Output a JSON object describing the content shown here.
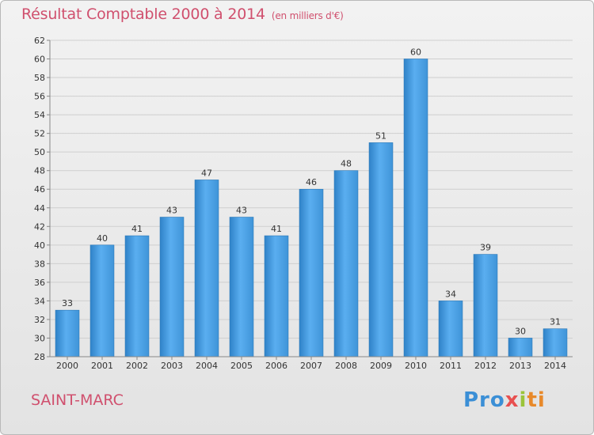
{
  "header": {
    "title": "Résultat Comptable 2000 à 2014",
    "subtitle": "(en milliers d'€)"
  },
  "footer": {
    "town": "SAINT-MARC",
    "brand": {
      "p1": "Pro",
      "p2": "x",
      "p3": "i",
      "p4": "ti"
    }
  },
  "colors": {
    "bar": "#4a9fe0",
    "bar_dark": "#2e7fc4",
    "title": "#d0506e"
  },
  "chart_data": {
    "type": "bar",
    "title": "Résultat Comptable 2000 à 2014",
    "subtitle": "(en milliers d'€)",
    "xlabel": "",
    "ylabel": "",
    "categories": [
      "2000",
      "2001",
      "2002",
      "2003",
      "2004",
      "2005",
      "2006",
      "2007",
      "2008",
      "2009",
      "2010",
      "2011",
      "2012",
      "2013",
      "2014"
    ],
    "values": [
      33,
      40,
      41,
      43,
      47,
      43,
      41,
      46,
      48,
      51,
      60,
      34,
      39,
      30,
      31
    ],
    "ylim": [
      28,
      62
    ],
    "yticks": [
      28,
      30,
      32,
      34,
      36,
      38,
      40,
      42,
      44,
      46,
      48,
      50,
      52,
      54,
      56,
      58,
      60,
      62
    ],
    "grid": true,
    "legend": "none"
  }
}
